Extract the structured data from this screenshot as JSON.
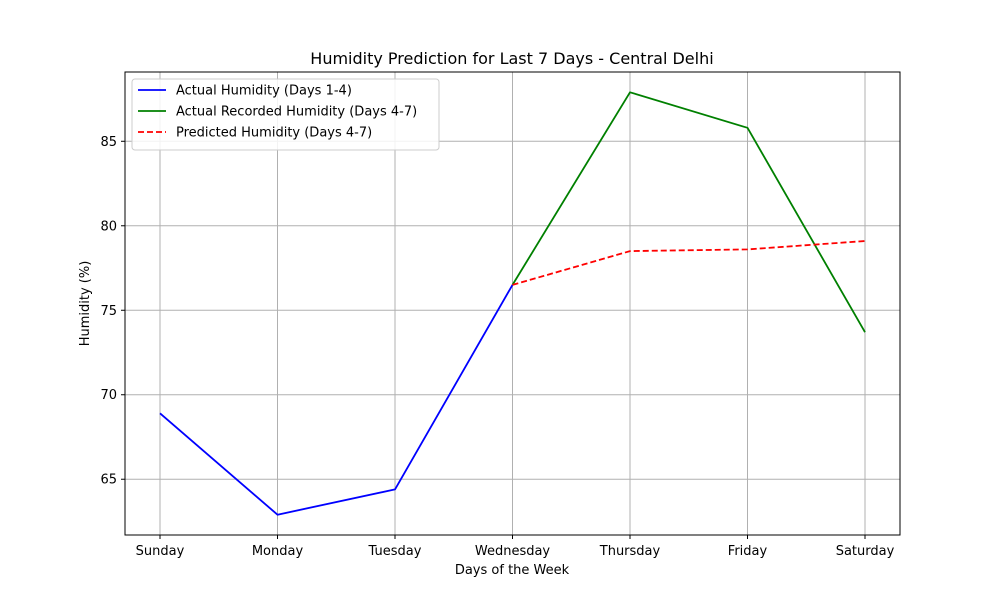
{
  "chart_data": {
    "type": "line",
    "title": "Humidity Prediction for Last 7 Days - Central Delhi",
    "xlabel": "Days of the Week",
    "ylabel": "Humidity (%)",
    "categories": [
      "Sunday",
      "Monday",
      "Tuesday",
      "Wednesday",
      "Thursday",
      "Friday",
      "Saturday"
    ],
    "ylim": [
      61.7,
      89.1
    ],
    "yticks": [
      65,
      70,
      75,
      80,
      85
    ],
    "grid": true,
    "legend_position": "top-left",
    "series": [
      {
        "name": "Actual Humidity (Days 1-4)",
        "color": "#0000ff",
        "style": "solid",
        "x": [
          "Sunday",
          "Monday",
          "Tuesday",
          "Wednesday"
        ],
        "values": [
          68.9,
          62.9,
          64.4,
          76.5
        ]
      },
      {
        "name": "Actual Recorded Humidity (Days 4-7)",
        "color": "#008000",
        "style": "solid",
        "x": [
          "Wednesday",
          "Thursday",
          "Friday",
          "Saturday"
        ],
        "values": [
          76.5,
          87.9,
          85.8,
          73.7
        ]
      },
      {
        "name": "Predicted Humidity (Days 4-7)",
        "color": "#ff0000",
        "style": "dashed",
        "x": [
          "Wednesday",
          "Thursday",
          "Friday",
          "Saturday"
        ],
        "values": [
          76.5,
          78.5,
          78.6,
          79.1
        ]
      }
    ]
  }
}
